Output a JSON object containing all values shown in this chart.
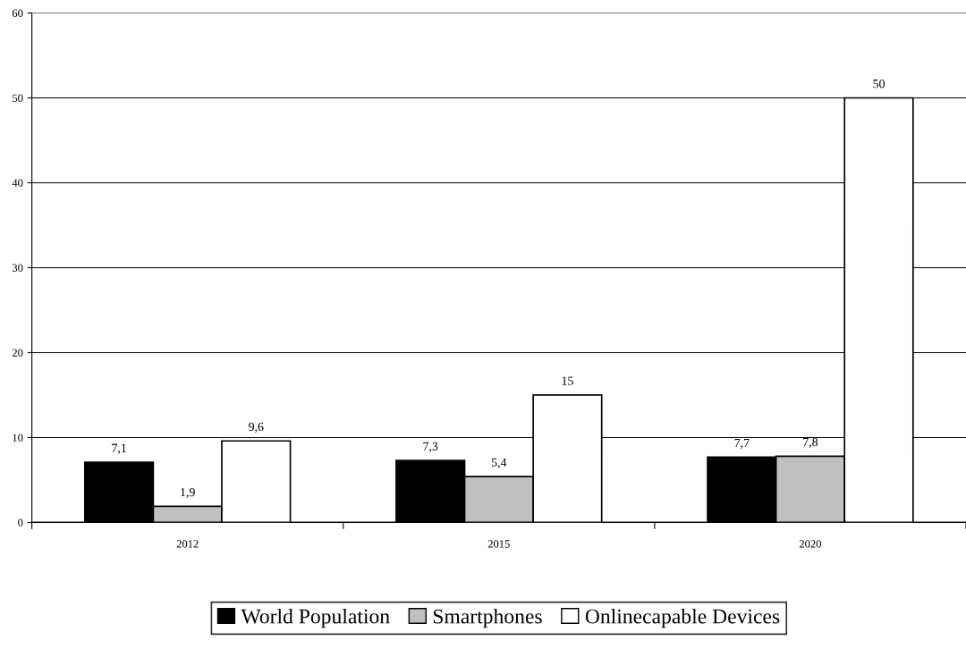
{
  "chart_data": {
    "type": "bar",
    "categories": [
      "2012",
      "2015",
      "2020"
    ],
    "series": [
      {
        "name": "World Population",
        "color": "#000000",
        "values": [
          7.1,
          7.3,
          7.7
        ],
        "value_labels": [
          "7,1",
          "7,3",
          "7,7"
        ]
      },
      {
        "name": "Smartphones",
        "color": "#c0c0c0",
        "values": [
          1.9,
          5.4,
          7.8
        ],
        "value_labels": [
          "1,9",
          "5,4",
          "7,8"
        ]
      },
      {
        "name": "Onlinecapable Devices",
        "color": "#ffffff",
        "values": [
          9.6,
          15,
          50
        ],
        "value_labels": [
          "9,6",
          "15",
          "50"
        ]
      }
    ],
    "ylim": [
      0,
      60
    ],
    "yticks": [
      0,
      10,
      20,
      30,
      40,
      50,
      60
    ],
    "grid": "y",
    "legend": "bottom"
  }
}
